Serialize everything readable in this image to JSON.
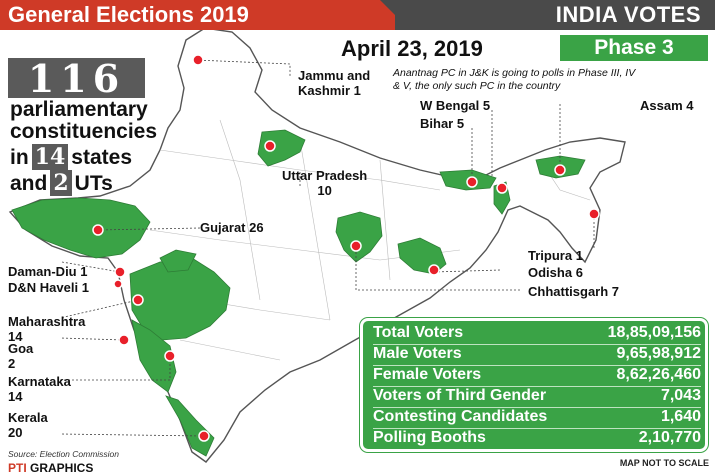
{
  "header": {
    "title": "General Elections 2019",
    "right_title": "INDIA VOTES"
  },
  "date": "April 23, 2019",
  "phase": "Phase 3",
  "summary": {
    "count": "116",
    "line1": "parliamentary",
    "line2": "constituencies",
    "in_label": "in",
    "states_count": "14",
    "states_label": "states",
    "and_label": "and",
    "uts_count": "2",
    "uts_label": "UTs"
  },
  "note": "Anantnag PC in J&K is going to polls in Phase III, IV & V, the only such PC in the country",
  "regions": [
    {
      "name": "Jammu and",
      "name2": "Kashmir",
      "seats": "1"
    },
    {
      "name": "W Bengal",
      "seats": "5"
    },
    {
      "name": "Bihar",
      "seats": "5"
    },
    {
      "name": "Assam",
      "seats": "4"
    },
    {
      "name": "Uttar Pradesh",
      "seats": "10"
    },
    {
      "name": "Gujarat",
      "seats": "26"
    },
    {
      "name": "Tripura",
      "seats": "1"
    },
    {
      "name": "Odisha",
      "seats": "6"
    },
    {
      "name": "Chhattisgarh",
      "seats": "7"
    },
    {
      "name": "Daman-Diu",
      "seats": "1"
    },
    {
      "name": "D&N Haveli",
      "seats": "1"
    },
    {
      "name": "Maharashtra",
      "seats": "14"
    },
    {
      "name": "Goa",
      "seats": "2"
    },
    {
      "name": "Karnataka",
      "seats": "14"
    },
    {
      "name": "Kerala",
      "seats": "20"
    }
  ],
  "stats": [
    {
      "label": "Total Voters",
      "value": "18,85,09,156"
    },
    {
      "label": "Male Voters",
      "value": "9,65,98,912"
    },
    {
      "label": "Female Voters",
      "value": "8,62,26,460"
    },
    {
      "label": "Voters of Third Gender",
      "value": "7,043"
    },
    {
      "label": "Contesting Candidates",
      "value": "1,640"
    },
    {
      "label": "Polling Booths",
      "value": "2,10,770"
    }
  ],
  "source": "Source: Election Commission",
  "brand_prefix": "PTI",
  "brand": "GRAPHICS",
  "scale_note": "MAP NOT TO SCALE",
  "colors": {
    "header_red": "#cf3a27",
    "header_gray": "#4a4a4a",
    "green": "#3aa346",
    "marker": "#e8202a"
  }
}
